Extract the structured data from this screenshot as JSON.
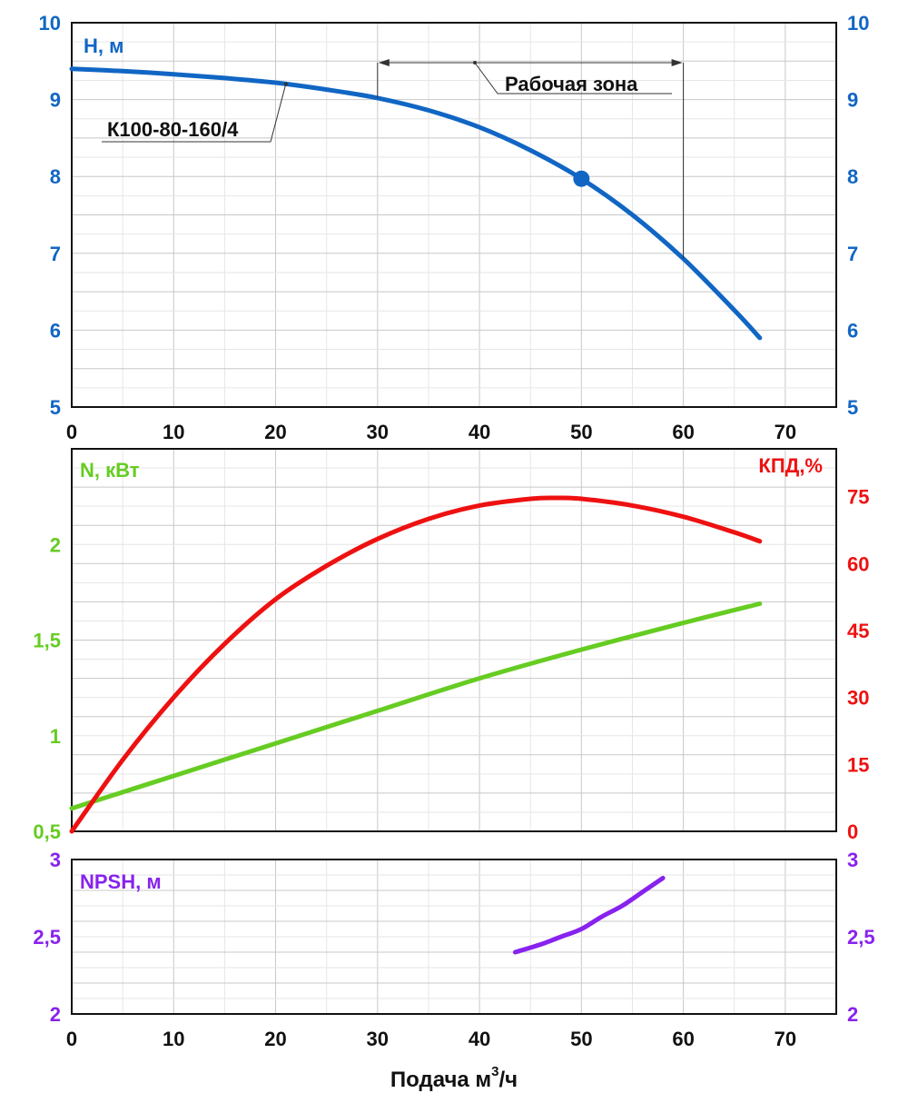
{
  "chart_data": [
    {
      "type": "line",
      "panel": "head",
      "ylabel": "H, м",
      "ylim": [
        5,
        10
      ],
      "xlim": [
        0,
        75
      ],
      "y_ticks": [
        "5",
        "6",
        "7",
        "8",
        "9",
        "10"
      ],
      "x_ticks": [
        "0",
        "10",
        "20",
        "30",
        "40",
        "50",
        "60",
        "70"
      ],
      "color": "#1166c4",
      "series": [
        {
          "name": "К100-80-160/4",
          "x": [
            0,
            5,
            10,
            15,
            20,
            25,
            30,
            35,
            40,
            45,
            50,
            55,
            60,
            65,
            67.5
          ],
          "y": [
            9.4,
            9.37,
            9.33,
            9.28,
            9.22,
            9.13,
            9.02,
            8.86,
            8.64,
            8.34,
            7.97,
            7.5,
            6.93,
            6.26,
            5.9
          ]
        }
      ],
      "operating_point": {
        "x": 50,
        "y": 7.97
      },
      "annotations": {
        "curve_label": "К100-80-160/4",
        "working_zone": "Рабочая зона",
        "working_zone_range": [
          30,
          60
        ]
      }
    },
    {
      "type": "line",
      "panel": "power_efficiency",
      "ylabel": "N, кВт",
      "ylabel_right": "КПД,%",
      "ylim": [
        0.5,
        2.5
      ],
      "ylim_right": [
        0,
        85.7
      ],
      "xlim": [
        0,
        75
      ],
      "y_ticks": [
        "0,5",
        "1",
        "1,5",
        "2"
      ],
      "y_ticks_right": [
        "0",
        "15",
        "30",
        "45",
        "60",
        "75"
      ],
      "series": [
        {
          "axis": "left",
          "color": "#66cc22",
          "x": [
            0,
            10,
            20,
            30,
            40,
            50,
            60,
            67.5
          ],
          "y": [
            0.62,
            0.79,
            0.96,
            1.13,
            1.3,
            1.45,
            1.59,
            1.69
          ]
        },
        {
          "axis": "right",
          "color": "#ee1111",
          "x": [
            0,
            5,
            10,
            15,
            20,
            25,
            30,
            35,
            40,
            45,
            47.5,
            50,
            55,
            60,
            65,
            67.5
          ],
          "y": [
            0,
            16,
            30,
            42,
            52,
            59.5,
            65.5,
            70,
            73,
            74.5,
            74.7,
            74.5,
            73,
            70.5,
            67,
            65
          ]
        }
      ]
    },
    {
      "type": "line",
      "panel": "npsh",
      "ylabel": "NPSH, м",
      "ylim": [
        2,
        3
      ],
      "xlim": [
        0,
        75
      ],
      "y_ticks": [
        "2",
        "2,5",
        "3"
      ],
      "x_ticks": [
        "0",
        "10",
        "20",
        "30",
        "40",
        "50",
        "60",
        "70"
      ],
      "xlabel": "Подача м",
      "xlabel_sup": "3",
      "xlabel_suffix": "/ч",
      "color": "#8822ee",
      "series": [
        {
          "x": [
            43.5,
            46,
            48,
            50,
            52,
            54,
            56,
            58
          ],
          "y": [
            2.4,
            2.45,
            2.5,
            2.55,
            2.63,
            2.7,
            2.79,
            2.88
          ]
        }
      ]
    }
  ]
}
